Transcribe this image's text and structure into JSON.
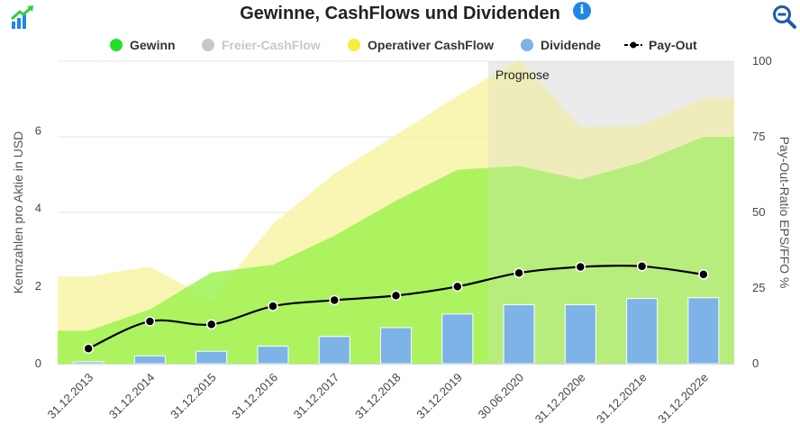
{
  "header": {
    "title": "Gewinne, CashFlows und Dividenden",
    "info_icon": "info-icon",
    "logo_icon": "chart-growth-icon",
    "zoom_icon": "zoom-out-icon"
  },
  "legend": [
    {
      "name": "Gewinn",
      "color": "#22e02a",
      "hidden": false
    },
    {
      "name": "Freier-CashFlow",
      "color": "#c8c8c8",
      "hidden": true
    },
    {
      "name": "Operativer CashFlow",
      "color": "#f5f03c",
      "hidden": false
    },
    {
      "name": "Dividende",
      "color": "#7eb3e8",
      "hidden": false
    },
    {
      "name": "Pay-Out",
      "color": "#000000",
      "hidden": false
    }
  ],
  "chart_data": {
    "type": "bar",
    "categories": [
      "31.12.2013",
      "31.12.2014",
      "31.12.2015",
      "31.12.2016",
      "31.12.2017",
      "31.12.2018",
      "31.12.2019",
      "30.06.2020",
      "31.12.2020e",
      "31.12.2021e",
      "31.12.2022e"
    ],
    "ylabel": "Kennzahlen pro Aktie in USD",
    "ylabel_right": "Pay-Out-Ratio EPS/FFO %",
    "ylim": [
      0,
      7.8
    ],
    "ylim_right": [
      0,
      100
    ],
    "yticks": [
      0,
      2,
      4,
      6
    ],
    "yticks_right": [
      0,
      25,
      50,
      75,
      100
    ],
    "forecast_label": "Prognose",
    "forecast_start_index": 7,
    "series": [
      {
        "name": "Operativer CashFlow",
        "type": "area",
        "color": "#f7f2a0",
        "values": [
          2.25,
          2.5,
          1.65,
          3.6,
          4.9,
          5.9,
          6.9,
          7.85,
          6.1,
          6.15,
          6.85
        ]
      },
      {
        "name": "Gewinn",
        "type": "area",
        "color": "#99f24a",
        "values": [
          0.85,
          1.4,
          2.35,
          2.55,
          3.3,
          4.2,
          5.0,
          5.1,
          4.75,
          5.2,
          5.85
        ]
      },
      {
        "name": "Dividende",
        "type": "bar",
        "color": "#7eb3e8",
        "values": [
          0.05,
          0.2,
          0.32,
          0.45,
          0.7,
          0.93,
          1.28,
          1.52,
          1.52,
          1.68,
          1.7
        ]
      },
      {
        "name": "Pay-Out",
        "type": "line",
        "axis": "right",
        "color": "#000000",
        "values": [
          5,
          14,
          13,
          19,
          21,
          22.5,
          25.5,
          30,
          32,
          32.2,
          29.5
        ]
      }
    ],
    "grid": true,
    "legend_position": "top"
  }
}
